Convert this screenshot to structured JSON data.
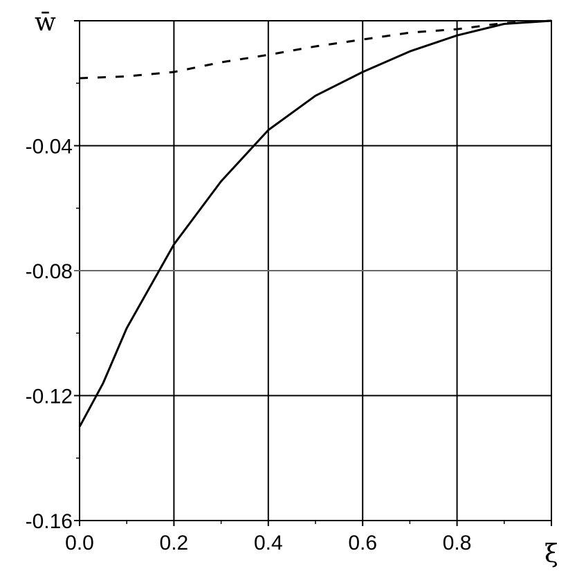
{
  "chart_data": {
    "type": "line",
    "title": "",
    "xlabel": "ξ",
    "ylabel": "w̄",
    "xlim": [
      0,
      1
    ],
    "ylim": [
      -0.16,
      0
    ],
    "grid": true,
    "x_ticks": [
      "0.0",
      "0.2",
      "0.4",
      "0.6",
      "0.8"
    ],
    "x_tick_values": [
      0,
      0.2,
      0.4,
      0.6,
      0.8
    ],
    "y_ticks": [
      "-0.04",
      "-0.08",
      "-0.12",
      "-0.16"
    ],
    "y_tick_values": [
      -0.04,
      -0.08,
      -0.12,
      -0.16
    ],
    "series": [
      {
        "style": "solid",
        "color": "#000000",
        "x": [
          0,
          0.05,
          0.1,
          0.2,
          0.3,
          0.4,
          0.5,
          0.6,
          0.7,
          0.8,
          0.9,
          1.0
        ],
        "y": [
          -0.13,
          -0.116,
          -0.0984,
          -0.0716,
          -0.0514,
          -0.035,
          -0.024,
          -0.0164,
          -0.0098,
          -0.0047,
          -0.001,
          0
        ]
      },
      {
        "style": "dashed",
        "color": "#000000",
        "x": [
          0,
          0.1,
          0.2,
          0.3,
          0.4,
          0.5,
          0.6,
          0.7,
          0.8,
          0.9,
          1.0
        ],
        "y": [
          -0.0184,
          -0.0178,
          -0.0164,
          -0.0133,
          -0.0109,
          -0.0082,
          -0.006,
          -0.0038,
          -0.0027,
          -0.0007,
          0
        ]
      }
    ]
  }
}
